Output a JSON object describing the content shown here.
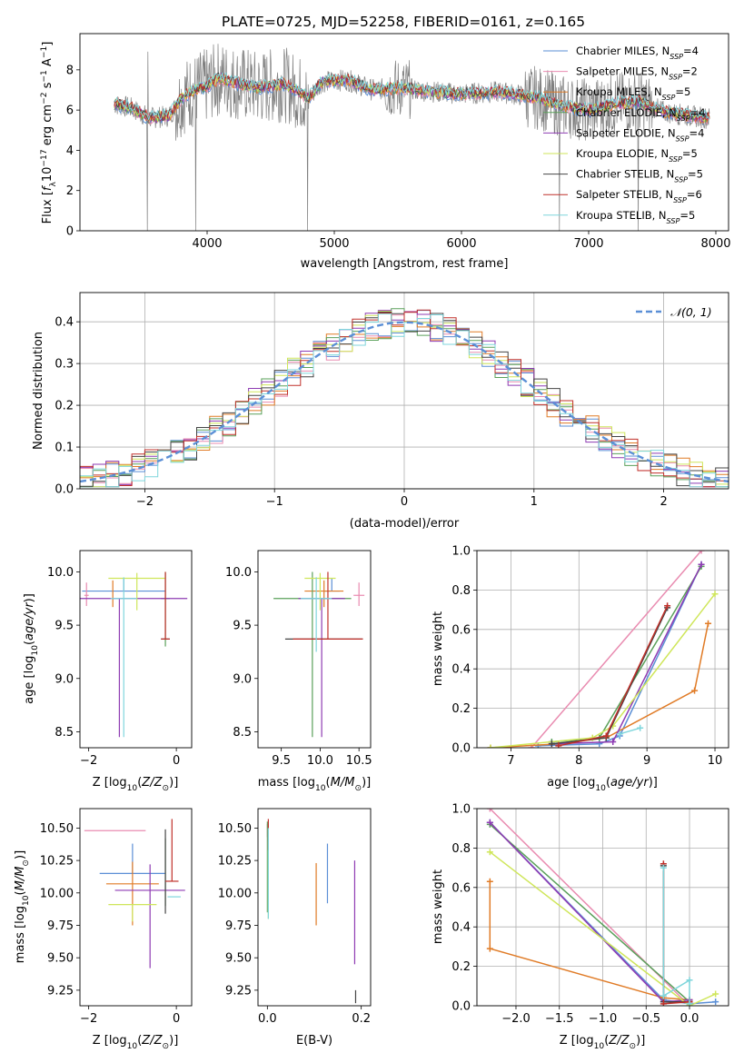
{
  "figure": {
    "title": "PLATE=0725, MJD=52258, FIBERID=0161, z=0.165"
  },
  "colors": {
    "Chabrier MILES": "#5b8fd6",
    "Salpeter MILES": "#e98bb0",
    "Kroupa MILES": "#e07b26",
    "Chabrier ELODIE": "#5aa05a",
    "Salpeter ELODIE": "#8e3bb3",
    "Kroupa ELODIE": "#cfe65a",
    "Chabrier STELIB": "#444444",
    "Salpeter STELIB": "#c0302a",
    "Kroupa STELIB": "#7fd6dc",
    "data": "#808080",
    "normal": "#5b8fd6"
  },
  "chart_data": [
    {
      "id": "spectrum",
      "type": "line",
      "xlabel": "wavelength [Angstrom, rest frame]",
      "ylabel": "Flux [fλ10⁻¹⁷ erg cm⁻² s⁻¹ A⁻¹]",
      "xlim": [
        3000,
        8100
      ],
      "ylim": [
        0,
        9.8
      ],
      "xticks": [
        4000,
        5000,
        6000,
        7000,
        8000
      ],
      "yticks": [
        0,
        2,
        4,
        6,
        8
      ],
      "legend_position": "top-right",
      "legend": [
        "Chabrier MILES, N_SSP=4",
        "Salpeter MILES, N_SSP=2",
        "Kroupa MILES, N_SSP=5",
        "Chabrier ELODIE, N_SSP=4",
        "Salpeter ELODIE, N_SSP=4",
        "Kroupa ELODIE, N_SSP=5",
        "Chabrier STELIB, N_SSP=5",
        "Salpeter STELIB, N_SSP=6",
        "Kroupa STELIB, N_SSP=5"
      ],
      "continuum": [
        [
          3270,
          6.3
        ],
        [
          3400,
          6.1
        ],
        [
          3550,
          5.6
        ],
        [
          3700,
          5.7
        ],
        [
          3800,
          6.6
        ],
        [
          3900,
          7.0
        ],
        [
          4000,
          7.2
        ],
        [
          4100,
          7.6
        ],
        [
          4200,
          7.4
        ],
        [
          4400,
          7.1
        ],
        [
          4600,
          7.3
        ],
        [
          4800,
          6.6
        ],
        [
          4900,
          7.4
        ],
        [
          5100,
          7.5
        ],
        [
          5300,
          7.0
        ],
        [
          5500,
          7.1
        ],
        [
          5800,
          6.9
        ],
        [
          6000,
          6.8
        ],
        [
          6300,
          6.9
        ],
        [
          6600,
          6.6
        ],
        [
          6800,
          6.2
        ],
        [
          7000,
          6.0
        ],
        [
          7200,
          6.3
        ],
        [
          7400,
          6.4
        ],
        [
          7600,
          5.9
        ],
        [
          7800,
          5.7
        ],
        [
          7950,
          5.6
        ]
      ]
    },
    {
      "id": "residuals",
      "type": "histogram",
      "xlabel": "(data-model)/error",
      "ylabel": "Normed distribution",
      "xlim": [
        -2.5,
        2.5
      ],
      "ylim": [
        0,
        0.47
      ],
      "xticks": [
        -2,
        -1,
        0,
        1,
        2
      ],
      "yticks": [
        0.0,
        0.1,
        0.2,
        0.3,
        0.4
      ],
      "grid": true,
      "legend_position": "top-right",
      "legend": [
        "𝒩(0, 1)"
      ],
      "bin_width": 0.1
    },
    {
      "id": "age_vs_Z",
      "type": "errorbar",
      "xlabel": "Z [log10(Z/Z⊙)]",
      "ylabel": "age [log10(age/yr)]",
      "xlim": [
        -2.2,
        0.35
      ],
      "ylim": [
        8.35,
        10.2
      ],
      "xticks": [
        -2,
        0
      ],
      "yticks": [
        8.5,
        9.0,
        9.5,
        10.0
      ],
      "points": [
        {
          "model": "Chabrier MILES",
          "x": -1.2,
          "y": 9.82,
          "xerr": 0.95,
          "yerr_lo": 0.0,
          "yerr_hi": 0.12
        },
        {
          "model": "Salpeter MILES",
          "x": -2.05,
          "y": 9.78,
          "xerr": 0.05,
          "yerr_lo": 0.1,
          "yerr_hi": 0.12
        },
        {
          "model": "Kroupa MILES",
          "x": -1.45,
          "y": 9.82,
          "xerr": 0.0,
          "yerr_lo": 0.15,
          "yerr_hi": 0.1
        },
        {
          "model": "Chabrier ELODIE",
          "x": -0.25,
          "y": 9.75,
          "xerr": 0.1,
          "yerr_lo": 0.45,
          "yerr_hi": 0.25
        },
        {
          "model": "Salpeter ELODIE",
          "x": -1.3,
          "y": 9.75,
          "xerr": 1.55,
          "yerr_lo": 1.3,
          "yerr_hi": 0.0
        },
        {
          "model": "Kroupa ELODIE",
          "x": -0.9,
          "y": 9.94,
          "xerr": 0.65,
          "yerr_lo": 0.3,
          "yerr_hi": 0.05
        },
        {
          "model": "Chabrier STELIB",
          "x": -0.25,
          "y": 9.37,
          "xerr": 0.1,
          "yerr_lo": 0.0,
          "yerr_hi": 0.0
        },
        {
          "model": "Salpeter STELIB",
          "x": -0.25,
          "y": 9.37,
          "xerr": 0.1,
          "yerr_lo": 0.0,
          "yerr_hi": 0.63
        },
        {
          "model": "Kroupa STELIB",
          "x": -1.2,
          "y": 9.75,
          "xerr": 0.3,
          "yerr_lo": 1.3,
          "yerr_hi": 0.2
        }
      ]
    },
    {
      "id": "age_vs_mass",
      "type": "errorbar",
      "xlabel": "mass [log10(M/M⊙)]",
      "ylabel": "",
      "xlim": [
        9.2,
        10.65
      ],
      "ylim": [
        8.35,
        10.2
      ],
      "xticks": [
        9.5,
        10.0,
        10.5
      ],
      "yticks": [
        8.5,
        9.0,
        9.5,
        10.0
      ],
      "points": [
        {
          "model": "Chabrier MILES",
          "x": 10.15,
          "y": 9.82,
          "xerr": 0.1,
          "yerr_lo": 0.0,
          "yerr_hi": 0.12
        },
        {
          "model": "Salpeter MILES",
          "x": 10.5,
          "y": 9.78,
          "xerr": 0.07,
          "yerr_lo": 0.1,
          "yerr_hi": 0.12
        },
        {
          "model": "Kroupa MILES",
          "x": 10.05,
          "y": 9.82,
          "xerr": 0.25,
          "yerr_lo": 0.15,
          "yerr_hi": 0.1
        },
        {
          "model": "Chabrier ELODIE",
          "x": 9.9,
          "y": 9.75,
          "xerr": 0.5,
          "yerr_lo": 1.3,
          "yerr_hi": 0.25
        },
        {
          "model": "Salpeter ELODIE",
          "x": 10.02,
          "y": 9.75,
          "xerr": 0.3,
          "yerr_lo": 1.3,
          "yerr_hi": 0.0
        },
        {
          "model": "Kroupa ELODIE",
          "x": 10.0,
          "y": 9.94,
          "xerr": 0.2,
          "yerr_lo": 0.3,
          "yerr_hi": 0.05
        },
        {
          "model": "Chabrier STELIB",
          "x": 10.05,
          "y": 9.37,
          "xerr": 0.5,
          "yerr_lo": 0.0,
          "yerr_hi": 0.0
        },
        {
          "model": "Salpeter STELIB",
          "x": 10.1,
          "y": 9.37,
          "xerr": 0.45,
          "yerr_lo": 0.0,
          "yerr_hi": 0.63
        },
        {
          "model": "Kroupa STELIB",
          "x": 9.95,
          "y": 9.75,
          "xerr": 0.2,
          "yerr_lo": 0.5,
          "yerr_hi": 0.2
        }
      ]
    },
    {
      "id": "massweight_vs_age",
      "type": "line",
      "xlabel": "age [log10(age/yr)]",
      "ylabel": "mass weight",
      "xlim": [
        6.5,
        10.2
      ],
      "ylim": [
        0,
        1.0
      ],
      "xticks": [
        7,
        8,
        9,
        10
      ],
      "yticks": [
        0.0,
        0.2,
        0.4,
        0.6,
        0.8,
        1.0
      ],
      "grid": true,
      "series": [
        {
          "model": "Chabrier MILES",
          "x": [
            7.4,
            8.3,
            8.6,
            9.8
          ],
          "y": [
            0.01,
            0.02,
            0.06,
            0.93
          ]
        },
        {
          "model": "Salpeter MILES",
          "x": [
            7.3,
            9.8
          ],
          "y": [
            0.0,
            1.0
          ]
        },
        {
          "model": "Kroupa MILES",
          "x": [
            6.7,
            7.7,
            8.4,
            9.7,
            9.9
          ],
          "y": [
            0.0,
            0.02,
            0.05,
            0.29,
            0.63
          ]
        },
        {
          "model": "Chabrier ELODIE",
          "x": [
            7.6,
            8.3,
            9.8
          ],
          "y": [
            0.03,
            0.05,
            0.92
          ]
        },
        {
          "model": "Salpeter ELODIE",
          "x": [
            7.6,
            8.5,
            9.8
          ],
          "y": [
            0.02,
            0.03,
            0.93
          ]
        },
        {
          "model": "Kroupa ELODIE",
          "x": [
            6.7,
            8.2,
            8.5,
            10.0
          ],
          "y": [
            0.0,
            0.05,
            0.11,
            0.78
          ]
        },
        {
          "model": "Chabrier STELIB",
          "x": [
            7.6,
            8.4,
            9.3
          ],
          "y": [
            0.02,
            0.05,
            0.71
          ]
        },
        {
          "model": "Salpeter STELIB",
          "x": [
            7.7,
            8.4,
            9.3
          ],
          "y": [
            0.01,
            0.06,
            0.72
          ]
        },
        {
          "model": "Kroupa STELIB",
          "x": [
            8.6,
            8.9
          ],
          "y": [
            0.07,
            0.1
          ]
        }
      ]
    },
    {
      "id": "mass_vs_Z",
      "type": "errorbar",
      "xlabel": "Z [log10(Z/Z⊙)]",
      "ylabel": "mass [log10(M/M⊙)]",
      "xlim": [
        -2.2,
        0.35
      ],
      "ylim": [
        9.13,
        10.65
      ],
      "xticks": [
        -2,
        0
      ],
      "yticks": [
        9.25,
        9.5,
        9.75,
        10.0,
        10.25,
        10.5
      ],
      "points": [
        {
          "model": "Chabrier MILES",
          "x": -1.0,
          "y": 10.15,
          "xerr": 0.75,
          "yerr_lo": 0.0,
          "yerr_hi": 0.23
        },
        {
          "model": "Salpeter MILES",
          "x": -1.4,
          "y": 10.48,
          "xerr": 0.7,
          "yerr_lo": 0.0,
          "yerr_hi": 0.0
        },
        {
          "model": "Kroupa MILES",
          "x": -1.0,
          "y": 10.07,
          "xerr": 0.6,
          "yerr_lo": 0.32,
          "yerr_hi": 0.17
        },
        {
          "model": "Chabrier ELODIE",
          "x": -0.25,
          "y": 10.0,
          "xerr": 0.0,
          "yerr_lo": 0.1,
          "yerr_hi": 0.42
        },
        {
          "model": "Salpeter ELODIE",
          "x": -0.6,
          "y": 10.02,
          "xerr": 0.8,
          "yerr_lo": 0.6,
          "yerr_hi": 0.2
        },
        {
          "model": "Kroupa ELODIE",
          "x": -1.0,
          "y": 9.91,
          "xerr": 0.55,
          "yerr_lo": 0.13,
          "yerr_hi": 0.0
        },
        {
          "model": "Chabrier STELIB",
          "x": -0.25,
          "y": 10.09,
          "xerr": 0.0,
          "yerr_lo": 0.25,
          "yerr_hi": 0.4
        },
        {
          "model": "Salpeter STELIB",
          "x": -0.1,
          "y": 10.09,
          "xerr": 0.15,
          "yerr_lo": 0.0,
          "yerr_hi": 0.48
        },
        {
          "model": "Kroupa STELIB",
          "x": -0.05,
          "y": 9.97,
          "xerr": 0.15,
          "yerr_lo": 0.0,
          "yerr_hi": 0.0
        }
      ]
    },
    {
      "id": "mass_vs_ebv",
      "type": "errorbar",
      "xlabel": "E(B-V)",
      "ylabel": "",
      "xlim": [
        -0.02,
        0.22
      ],
      "ylim": [
        9.13,
        10.65
      ],
      "xticks": [
        0.0,
        0.2
      ],
      "yticks": [
        9.25,
        9.5,
        9.75,
        10.0,
        10.25,
        10.5
      ],
      "points": [
        {
          "model": "Chabrier MILES",
          "x": 0.128,
          "y": 10.15,
          "yerr_lo": 0.23,
          "yerr_hi": 0.23
        },
        {
          "model": "Salpeter MILES",
          "x": 0.0,
          "y": 10.48,
          "yerr_lo": 0.05,
          "yerr_hi": 0.05
        },
        {
          "model": "Kroupa MILES",
          "x": 0.104,
          "y": 10.0,
          "yerr_lo": 0.25,
          "yerr_hi": 0.23
        },
        {
          "model": "Chabrier ELODIE",
          "x": 0.0,
          "y": 10.2,
          "yerr_lo": 0.35,
          "yerr_hi": 0.35
        },
        {
          "model": "Salpeter ELODIE",
          "x": 0.186,
          "y": 9.85,
          "yerr_lo": 0.4,
          "yerr_hi": 0.4
        },
        {
          "model": "Kroupa ELODIE",
          "x": 0.002,
          "y": 10.1,
          "yerr_lo": 0.3,
          "yerr_hi": 0.3
        },
        {
          "model": "Chabrier STELIB",
          "x": 0.188,
          "y": 9.2,
          "yerr_lo": 0.05,
          "yerr_hi": 0.05
        },
        {
          "model": "Salpeter STELIB",
          "x": 0.002,
          "y": 10.45,
          "yerr_lo": 0.12,
          "yerr_hi": 0.12
        },
        {
          "model": "Kroupa STELIB",
          "x": 0.002,
          "y": 10.25,
          "yerr_lo": 0.45,
          "yerr_hi": 0.25
        }
      ]
    },
    {
      "id": "massweight_vs_Z",
      "type": "line",
      "xlabel": "Z [log10(Z/Z⊙)]",
      "ylabel": "mass weight",
      "xlim": [
        -2.45,
        0.45
      ],
      "ylim": [
        0,
        1.0
      ],
      "xticks": [
        -2.0,
        -1.5,
        -1.0,
        -0.5,
        0.0
      ],
      "yticks": [
        0.0,
        0.2,
        0.4,
        0.6,
        0.8,
        1.0
      ],
      "grid": true,
      "series": [
        {
          "model": "Chabrier MILES",
          "x": [
            -2.3,
            -0.3,
            0.0,
            0.3
          ],
          "y": [
            0.93,
            0.03,
            0.01,
            0.02
          ]
        },
        {
          "model": "Salpeter MILES",
          "x": [
            -2.3,
            0.0
          ],
          "y": [
            1.0,
            0.0
          ]
        },
        {
          "model": "Kroupa MILES",
          "x": [
            -2.3,
            -2.3,
            -0.3,
            0.0
          ],
          "y": [
            0.63,
            0.29,
            0.04,
            0.03
          ]
        },
        {
          "model": "Chabrier ELODIE",
          "x": [
            -2.3,
            0.0
          ],
          "y": [
            0.92,
            0.02
          ]
        },
        {
          "model": "Salpeter ELODIE",
          "x": [
            -2.3,
            -0.3,
            0.0
          ],
          "y": [
            0.93,
            0.02,
            0.03
          ]
        },
        {
          "model": "Kroupa ELODIE",
          "x": [
            -2.3,
            0.0,
            0.3
          ],
          "y": [
            0.78,
            0.0,
            0.06
          ]
        },
        {
          "model": "Chabrier STELIB",
          "x": [
            -0.3,
            -0.3,
            0.0
          ],
          "y": [
            0.71,
            0.02,
            0.02
          ]
        },
        {
          "model": "Salpeter STELIB",
          "x": [
            -0.3,
            -0.3,
            0.0
          ],
          "y": [
            0.72,
            0.01,
            0.02
          ]
        },
        {
          "model": "Kroupa STELIB",
          "x": [
            -0.3,
            -0.3,
            0.0,
            0.0
          ],
          "y": [
            0.7,
            0.05,
            0.13,
            0.01
          ]
        }
      ]
    }
  ]
}
